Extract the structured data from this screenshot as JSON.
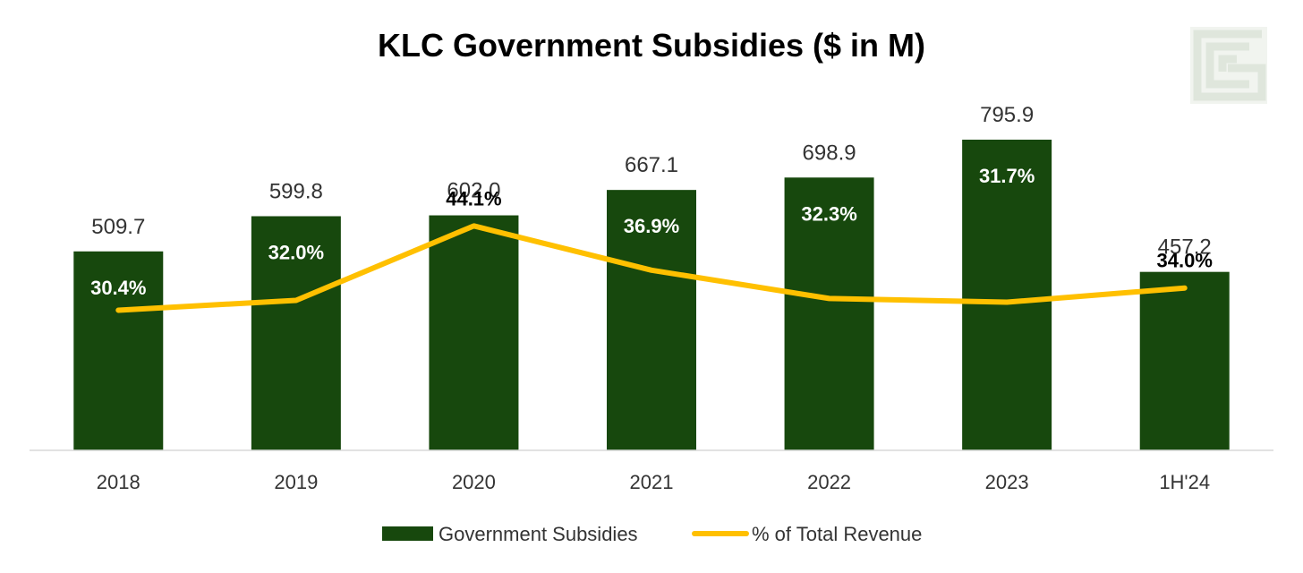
{
  "chart_data": {
    "type": "bar",
    "title": "KLC Government Subsidies ($ in M)",
    "categories": [
      "2018",
      "2019",
      "2020",
      "2021",
      "2022",
      "2023",
      "1H'24"
    ],
    "series": [
      {
        "name": "Government Subsidies",
        "type": "bar",
        "values": [
          509.7,
          599.8,
          602.0,
          667.1,
          698.9,
          795.9,
          457.2
        ],
        "labels": [
          "509.7",
          "599.8",
          "602.0",
          "667.1",
          "698.9",
          "795.9",
          "457.2"
        ]
      },
      {
        "name": "% of Total Revenue",
        "type": "line",
        "values": [
          30.4,
          32.0,
          44.1,
          36.9,
          32.3,
          31.7,
          34.0
        ],
        "labels": [
          "30.4%",
          "32.0%",
          "44.1%",
          "36.9%",
          "32.3%",
          "31.7%",
          "34.0%"
        ]
      }
    ],
    "ylim": [
      0,
      1000
    ],
    "y2lim": [
      0,
      60
    ],
    "grid": false,
    "legend": "bottom",
    "colors": {
      "bar": "#17480d",
      "line": "#ffc000",
      "logo": "#dfe6dc"
    }
  },
  "logo": {
    "icon": "stacked-g-logo"
  }
}
